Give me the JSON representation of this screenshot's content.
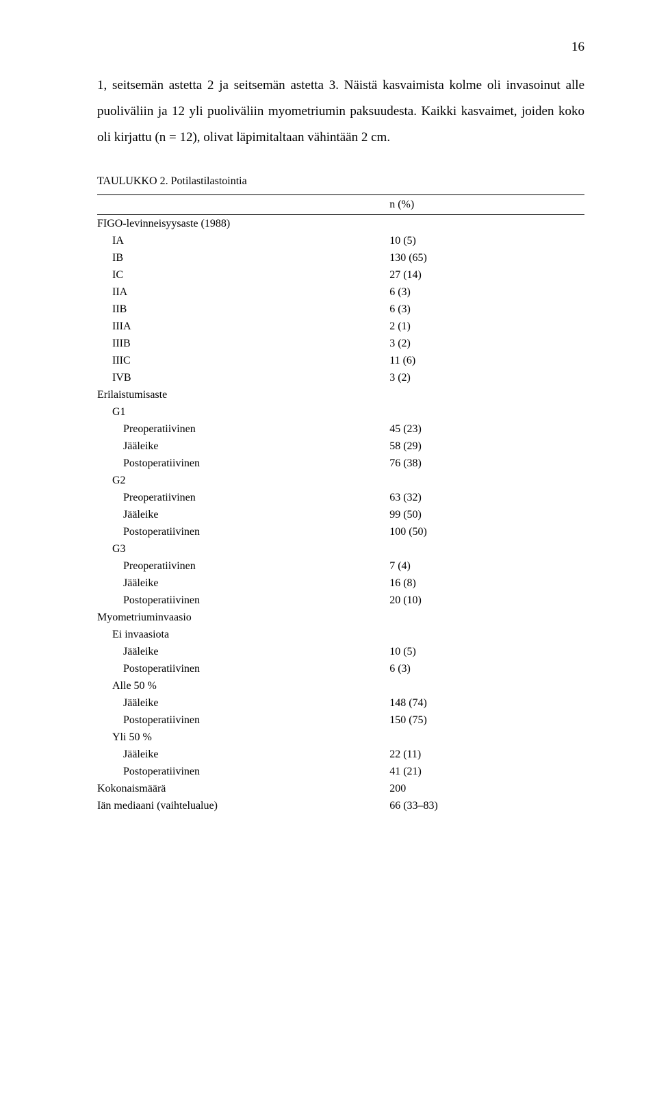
{
  "page_number": "16",
  "intro_text": "1, seitsemän astetta 2 ja seitsemän astetta 3. Näistä kasvaimista kolme oli invasoinut alle puoliväliin ja 12 yli puoliväliin myometriumin paksuudesta. Kaikki kasvaimet, joiden koko oli kirjattu (n = 12), olivat läpimitaltaan vähintään 2 cm.",
  "table_caption": "TAULUKKO 2. Potilastilastointia",
  "header_col2": "n (%)",
  "rows": [
    {
      "indent": 0,
      "label": "FIGO-levinneisyysaste (1988)",
      "value": ""
    },
    {
      "indent": 1,
      "label": "IA",
      "value": "10 (5)"
    },
    {
      "indent": 1,
      "label": "IB",
      "value": "130 (65)"
    },
    {
      "indent": 1,
      "label": "IC",
      "value": "27 (14)"
    },
    {
      "indent": 1,
      "label": "IIA",
      "value": "6 (3)"
    },
    {
      "indent": 1,
      "label": "IIB",
      "value": "6 (3)"
    },
    {
      "indent": 1,
      "label": "IIIA",
      "value": "2 (1)"
    },
    {
      "indent": 1,
      "label": "IIIB",
      "value": "3 (2)"
    },
    {
      "indent": 1,
      "label": "IIIC",
      "value": "11 (6)"
    },
    {
      "indent": 1,
      "label": "IVB",
      "value": "3 (2)"
    },
    {
      "indent": 0,
      "label": "Erilaistumisaste",
      "value": ""
    },
    {
      "indent": 1,
      "label": "G1",
      "value": ""
    },
    {
      "indent": 2,
      "label": "Preoperatiivinen",
      "value": "45 (23)"
    },
    {
      "indent": 2,
      "label": "Jääleike",
      "value": "58 (29)"
    },
    {
      "indent": 2,
      "label": "Postoperatiivinen",
      "value": "76 (38)"
    },
    {
      "indent": 1,
      "label": "G2",
      "value": ""
    },
    {
      "indent": 2,
      "label": "Preoperatiivinen",
      "value": "63 (32)"
    },
    {
      "indent": 2,
      "label": "Jääleike",
      "value": "99 (50)"
    },
    {
      "indent": 2,
      "label": "Postoperatiivinen",
      "value": "100 (50)"
    },
    {
      "indent": 1,
      "label": "G3",
      "value": ""
    },
    {
      "indent": 2,
      "label": "Preoperatiivinen",
      "value": "7 (4)"
    },
    {
      "indent": 2,
      "label": "Jääleike",
      "value": "16 (8)"
    },
    {
      "indent": 2,
      "label": "Postoperatiivinen",
      "value": "20 (10)"
    },
    {
      "indent": 0,
      "label": "Myometriuminvaasio",
      "value": ""
    },
    {
      "indent": 1,
      "label": "Ei invaasiota",
      "value": ""
    },
    {
      "indent": 2,
      "label": "Jääleike",
      "value": "10 (5)"
    },
    {
      "indent": 2,
      "label": "Postoperatiivinen",
      "value": "6 (3)"
    },
    {
      "indent": 1,
      "label": "Alle 50 %",
      "value": ""
    },
    {
      "indent": 2,
      "label": "Jääleike",
      "value": "148 (74)"
    },
    {
      "indent": 2,
      "label": "Postoperatiivinen",
      "value": "150 (75)"
    },
    {
      "indent": 1,
      "label": "Yli 50 %",
      "value": ""
    },
    {
      "indent": 2,
      "label": "Jääleike",
      "value": "22 (11)"
    },
    {
      "indent": 2,
      "label": "Postoperatiivinen",
      "value": "41 (21)"
    },
    {
      "indent": 0,
      "label": "Kokonaismäärä",
      "value": "200"
    },
    {
      "indent": 0,
      "label": "Iän mediaani (vaihtelualue)",
      "value": "66 (33–83)"
    }
  ]
}
